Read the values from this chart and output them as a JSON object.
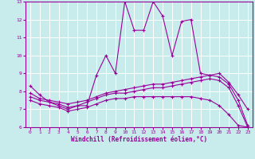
{
  "background_color": "#c8ecec",
  "grid_color": "#ffffff",
  "line_color": "#990099",
  "marker": "+",
  "xlabel": "Windchill (Refroidissement éolien,°C)",
  "xlim": [
    -0.5,
    23.5
  ],
  "ylim": [
    6,
    13
  ],
  "yticks": [
    6,
    7,
    8,
    9,
    10,
    11,
    12,
    13
  ],
  "xticks": [
    0,
    1,
    2,
    3,
    4,
    5,
    6,
    7,
    8,
    9,
    10,
    11,
    12,
    13,
    14,
    15,
    16,
    17,
    18,
    19,
    20,
    21,
    22,
    23
  ],
  "line1_x": [
    0,
    1,
    2,
    3,
    4,
    5,
    6,
    7,
    8,
    9,
    10,
    11,
    12,
    13,
    14,
    15,
    16,
    17,
    18,
    19,
    20,
    21,
    22,
    23
  ],
  "line1_y": [
    8.3,
    7.8,
    7.4,
    7.2,
    7.0,
    7.2,
    7.2,
    8.9,
    10.0,
    9.0,
    13.0,
    11.4,
    11.4,
    13.0,
    12.2,
    10.0,
    11.9,
    12.0,
    9.0,
    8.9,
    9.0,
    8.5,
    7.8,
    7.0
  ],
  "line2_x": [
    0,
    1,
    2,
    3,
    4,
    5,
    6,
    7,
    8,
    9,
    10,
    11,
    12,
    13,
    14,
    15,
    16,
    17,
    18,
    19,
    20,
    21,
    22,
    23
  ],
  "line2_y": [
    7.9,
    7.6,
    7.5,
    7.4,
    7.3,
    7.4,
    7.5,
    7.7,
    7.9,
    8.0,
    8.1,
    8.2,
    8.3,
    8.4,
    8.4,
    8.5,
    8.6,
    8.7,
    8.8,
    8.9,
    8.8,
    8.4,
    7.5,
    6.1
  ],
  "line3_x": [
    0,
    1,
    2,
    3,
    4,
    5,
    6,
    7,
    8,
    9,
    10,
    11,
    12,
    13,
    14,
    15,
    16,
    17,
    18,
    19,
    20,
    21,
    22,
    23
  ],
  "line3_y": [
    7.7,
    7.5,
    7.4,
    7.3,
    7.1,
    7.2,
    7.4,
    7.6,
    7.8,
    7.9,
    7.9,
    8.0,
    8.1,
    8.2,
    8.2,
    8.3,
    8.4,
    8.5,
    8.6,
    8.7,
    8.6,
    8.2,
    7.2,
    6.0
  ],
  "line4_x": [
    0,
    1,
    2,
    3,
    4,
    5,
    6,
    7,
    8,
    9,
    10,
    11,
    12,
    13,
    14,
    15,
    16,
    17,
    18,
    19,
    20,
    21,
    22,
    23
  ],
  "line4_y": [
    7.5,
    7.3,
    7.2,
    7.1,
    6.9,
    7.0,
    7.1,
    7.3,
    7.5,
    7.6,
    7.6,
    7.7,
    7.7,
    7.7,
    7.7,
    7.7,
    7.7,
    7.7,
    7.6,
    7.5,
    7.2,
    6.7,
    6.1,
    6.0
  ]
}
